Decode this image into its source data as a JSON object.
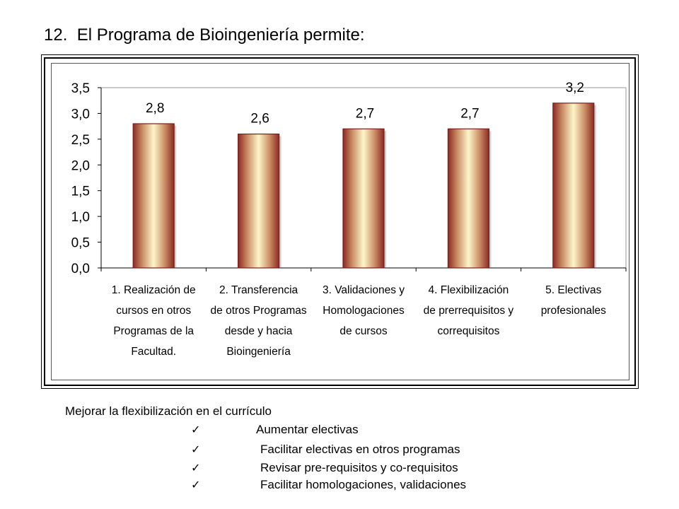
{
  "header": {
    "title": "12.  El Programa de Bioingeniería permite:"
  },
  "chart_data": {
    "type": "bar",
    "categories": [
      [
        "1.  Realización de",
        "cursos en otros",
        "Programas de la",
        "Facultad."
      ],
      [
        "2.  Transferencia",
        "de otros Programas",
        "desde y  hacia",
        "Bioingeniería"
      ],
      [
        "3.  Validaciones y",
        "Homologaciones",
        "de cursos"
      ],
      [
        "4.  Flexibilización",
        "de prerrequisitos y",
        "correquisitos"
      ],
      [
        "5.  Electivas",
        "profesionales"
      ]
    ],
    "values": [
      2.8,
      2.6,
      2.7,
      2.7,
      3.2
    ],
    "value_labels": [
      "2,8",
      "2,6",
      "2,7",
      "2,7",
      "3,2"
    ],
    "ylim": [
      0,
      3.5
    ],
    "yticks": [
      0,
      0.5,
      1.0,
      1.5,
      2.0,
      2.5,
      3.0,
      3.5
    ],
    "ytick_labels": [
      "0,0",
      "0,5",
      "1,0",
      "1,5",
      "2,0",
      "2,5",
      "3,0",
      "3,5"
    ],
    "title": "",
    "xlabel": "",
    "ylabel": "",
    "grid": false,
    "legend": "none",
    "colors": {
      "bar_edge": "#7a1f1f",
      "bar_dark": "#8b2a22",
      "bar_light": "#fdf6c9"
    }
  },
  "notes": {
    "heading": "Mejorar la flexibilización en el currículo",
    "check_icon": "✓",
    "items": [
      "Aumentar electivas",
      "Facilitar electivas en otros programas",
      "Revisar pre-requisitos y co-requisitos",
      "Facilitar homologaciones, validaciones"
    ]
  }
}
